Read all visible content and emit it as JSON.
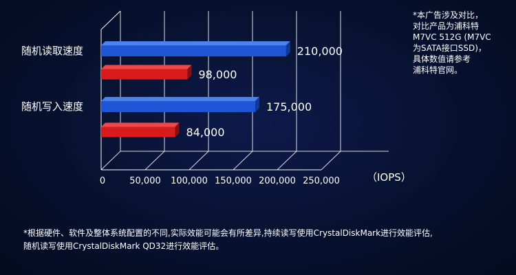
{
  "chart_data": {
    "type": "bar",
    "orientation": "horizontal",
    "categories": [
      "随机读取速度",
      "随机写入速度"
    ],
    "series": [
      {
        "values": [
          210000,
          175000
        ],
        "value_labels": [
          "210,000",
          "175,000"
        ]
      },
      {
        "values": [
          98000,
          84000
        ],
        "value_labels": [
          "98,000",
          "84,000"
        ]
      }
    ],
    "x_ticks": [
      0,
      50000,
      100000,
      150000,
      200000,
      250000
    ],
    "x_tick_labels": [
      "0",
      "50,000",
      "100,000",
      "150,000",
      "200,000",
      "250,000"
    ],
    "xlim": [
      0,
      250000
    ],
    "unit_label": "（IOPS）",
    "grid": true,
    "colors": {
      "series_1": "#1f56d6",
      "series_2": "#d81c1c",
      "grid": "#ffffff"
    }
  },
  "side_note": [
    "*本广告涉及对比，",
    "对比产品为浦科特",
    "M7VC 512G (M7VC",
    "为SATA接口SSD)，",
    "具体数值请参考",
    "浦科特官网。"
  ],
  "footnote": [
    "*根据硬件、软件及整体系统配置的不同,实际效能可能会有所差异,持续读写使用CrystalDiskMark进行效能评估,",
    "随机读写使用CrystalDiskMark QD32进行效能评估。"
  ]
}
